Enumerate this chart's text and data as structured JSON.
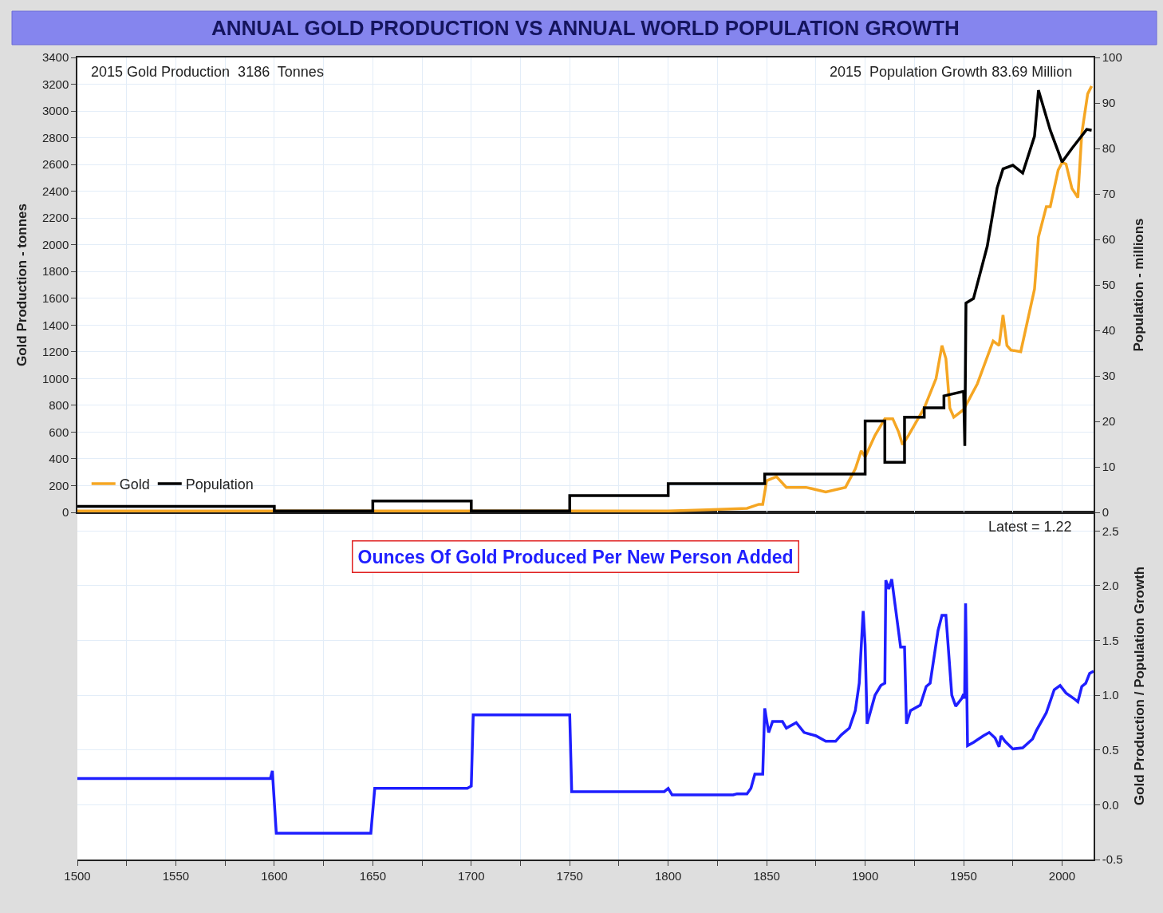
{
  "chart_data": [
    {
      "type": "line",
      "title": "ANNUAL GOLD PRODUCTION VS ANNUAL WORLD POPULATION GROWTH",
      "ylabel": "Gold Production - tonnes",
      "y2label": "Population - millions",
      "annotations": [
        "2015 Gold Production  3186  Tonnes",
        "2015  Population Growth 83.69 Million"
      ],
      "xlim": [
        1500,
        2016
      ],
      "xticks": [
        1500,
        {
          "value": 1525,
          "label": null
        },
        1550,
        {
          "value": 1575,
          "label": null
        },
        1600,
        {
          "value": 1625,
          "label": null
        },
        1650,
        {
          "value": 1675,
          "label": null
        },
        1700,
        {
          "value": 1725,
          "label": null
        },
        1750,
        {
          "value": 1775,
          "label": null
        },
        1800,
        {
          "value": 1825,
          "label": null
        },
        1850,
        {
          "value": 1875,
          "label": null
        },
        1900,
        {
          "value": 1925,
          "label": null
        },
        1950,
        {
          "value": 1975,
          "label": null
        },
        2000
      ],
      "ylim": [
        0,
        3400
      ],
      "yticks": [
        0,
        200,
        400,
        600,
        800,
        1000,
        1200,
        1400,
        1600,
        1800,
        2000,
        2200,
        2400,
        2600,
        2800,
        3000,
        3200,
        3400
      ],
      "y2lim": [
        0,
        100
      ],
      "y2ticks": [
        0,
        10,
        20,
        30,
        40,
        50,
        60,
        70,
        80,
        90,
        100
      ],
      "tick_labels": "y",
      "grid": true,
      "legend": "bottom left",
      "marker": "none",
      "line_style": "solid",
      "series": [
        {
          "name": "Gold",
          "color": "#f5a623",
          "x": [
            1500,
            1800,
            1820,
            1840,
            1846,
            1848,
            1849,
            1850,
            1855,
            1860,
            1870,
            1880,
            1890,
            1895,
            1898,
            1900,
            1905,
            1910,
            1914,
            1917,
            1919,
            1922,
            1930,
            1936,
            1939,
            1941,
            1943,
            1945,
            1950,
            1957,
            1965,
            1968,
            1970,
            1972,
            1974,
            1979,
            1986,
            1988,
            1992,
            1994,
            1998,
            2000,
            2002,
            2005,
            2008,
            2010,
            2013,
            2015
          ],
          "values": [
            10,
            10,
            20,
            30,
            60,
            60,
            150,
            237,
            267,
            187,
            187,
            153,
            187,
            324,
            460,
            415,
            575,
            700,
            700,
            600,
            506,
            575,
            780,
            1000,
            1247,
            1150,
            780,
            711,
            768,
            962,
            1281,
            1247,
            1475,
            1247,
            1213,
            1201,
            1669,
            2057,
            2285,
            2285,
            2558,
            2615,
            2604,
            2421,
            2353,
            2832,
            3128,
            3186
          ]
        },
        {
          "name": "Population",
          "color": "#000000",
          "axis": "y2",
          "x": [
            1500,
            1600,
            1600,
            1650,
            1650,
            1700,
            1700,
            1750,
            1750,
            1800,
            1800,
            1849,
            1849,
            1900,
            1900,
            1910,
            1910,
            1920,
            1920,
            1930,
            1930,
            1940,
            1940,
            1950,
            1950.6,
            1951.2,
            1955,
            1962,
            1967,
            1970,
            1975,
            1980,
            1986,
            1988,
            1994,
            2000,
            2005,
            2012.5,
            2015
          ],
          "values": [
            1.3,
            1.3,
            0.3,
            0.3,
            2.5,
            2.5,
            0.3,
            0.3,
            3.7,
            3.7,
            6.3,
            6.3,
            8.4,
            8.4,
            20.1,
            20.1,
            11,
            11,
            20.9,
            20.9,
            23,
            23,
            25.6,
            26.6,
            14.6,
            46,
            47,
            58.5,
            71.3,
            75.5,
            76.3,
            74.6,
            82.7,
            92.8,
            84,
            77,
            80,
            84.2,
            84
          ]
        }
      ]
    },
    {
      "type": "line",
      "title": "Ounces Of Gold Produced Per New Person Added",
      "ylabel": "Gold Production / Population Growth",
      "annotations": [
        "Latest = 1.22"
      ],
      "xlim": [
        1500,
        2016
      ],
      "xticks": [
        1500,
        {
          "value": 1525,
          "label": null
        },
        1550,
        {
          "value": 1575,
          "label": null
        },
        1600,
        {
          "value": 1625,
          "label": null
        },
        1650,
        {
          "value": 1675,
          "label": null
        },
        1700,
        {
          "value": 1725,
          "label": null
        },
        1750,
        {
          "value": 1775,
          "label": null
        },
        1800,
        {
          "value": 1825,
          "label": null
        },
        1850,
        {
          "value": 1875,
          "label": null
        },
        1900,
        {
          "value": 1925,
          "label": null
        },
        1950,
        {
          "value": 1975,
          "label": null
        },
        2000
      ],
      "ylim": [
        -0.5,
        2.67
      ],
      "yticks": [
        -0.5,
        {
          "value": 0,
          "label": "0.0"
        },
        0.5,
        {
          "value": 1,
          "label": "1.0"
        },
        1.5,
        {
          "value": 2,
          "label": "2.0"
        },
        2.5
      ],
      "grid": true,
      "marker": "none",
      "line_style": "solid",
      "series": [
        {
          "color": "#1f1fff",
          "x": [
            1500,
            1598,
            1599,
            1601,
            1649,
            1651,
            1698,
            1700,
            1701,
            1750,
            1751,
            1798,
            1800,
            1802,
            1833,
            1835,
            1840,
            1842,
            1844,
            1848,
            1849,
            1851,
            1853,
            1858,
            1860,
            1865,
            1869,
            1875,
            1880,
            1885,
            1888,
            1892,
            1895,
            1897,
            1899,
            1900,
            1901,
            1905,
            1908,
            1910,
            1910.5,
            1912,
            1913.5,
            1918,
            1920,
            1921,
            1923,
            1928,
            1931,
            1933,
            1937,
            1939,
            1941,
            1944,
            1946,
            1949,
            1950,
            1950.5,
            1951,
            1952,
            1955,
            1960,
            1963,
            1966,
            1968,
            1969,
            1971,
            1975,
            1980,
            1985,
            1987,
            1992,
            1996,
            1999,
            2002,
            2006,
            2008,
            2010,
            2012,
            2014,
            2016
          ],
          "values": [
            0.24,
            0.24,
            0.31,
            -0.26,
            -0.26,
            0.15,
            0.15,
            0.17,
            0.82,
            0.82,
            0.12,
            0.12,
            0.15,
            0.09,
            0.09,
            0.1,
            0.1,
            0.15,
            0.28,
            0.28,
            0.88,
            0.66,
            0.76,
            0.76,
            0.7,
            0.75,
            0.66,
            0.63,
            0.58,
            0.58,
            0.64,
            0.7,
            0.86,
            1.11,
            1.77,
            1.46,
            0.74,
            1.0,
            1.09,
            1.11,
            2.05,
            1.97,
            2.06,
            1.44,
            1.44,
            0.74,
            0.86,
            0.91,
            1.08,
            1.11,
            1.59,
            1.73,
            1.73,
            1.0,
            0.9,
            0.97,
            1.01,
            0.97,
            1.84,
            0.54,
            0.57,
            0.63,
            0.66,
            0.61,
            0.53,
            0.63,
            0.58,
            0.51,
            0.52,
            0.6,
            0.68,
            0.84,
            1.05,
            1.09,
            1.02,
            0.97,
            0.94,
            1.08,
            1.11,
            1.2,
            1.22
          ]
        }
      ]
    }
  ]
}
